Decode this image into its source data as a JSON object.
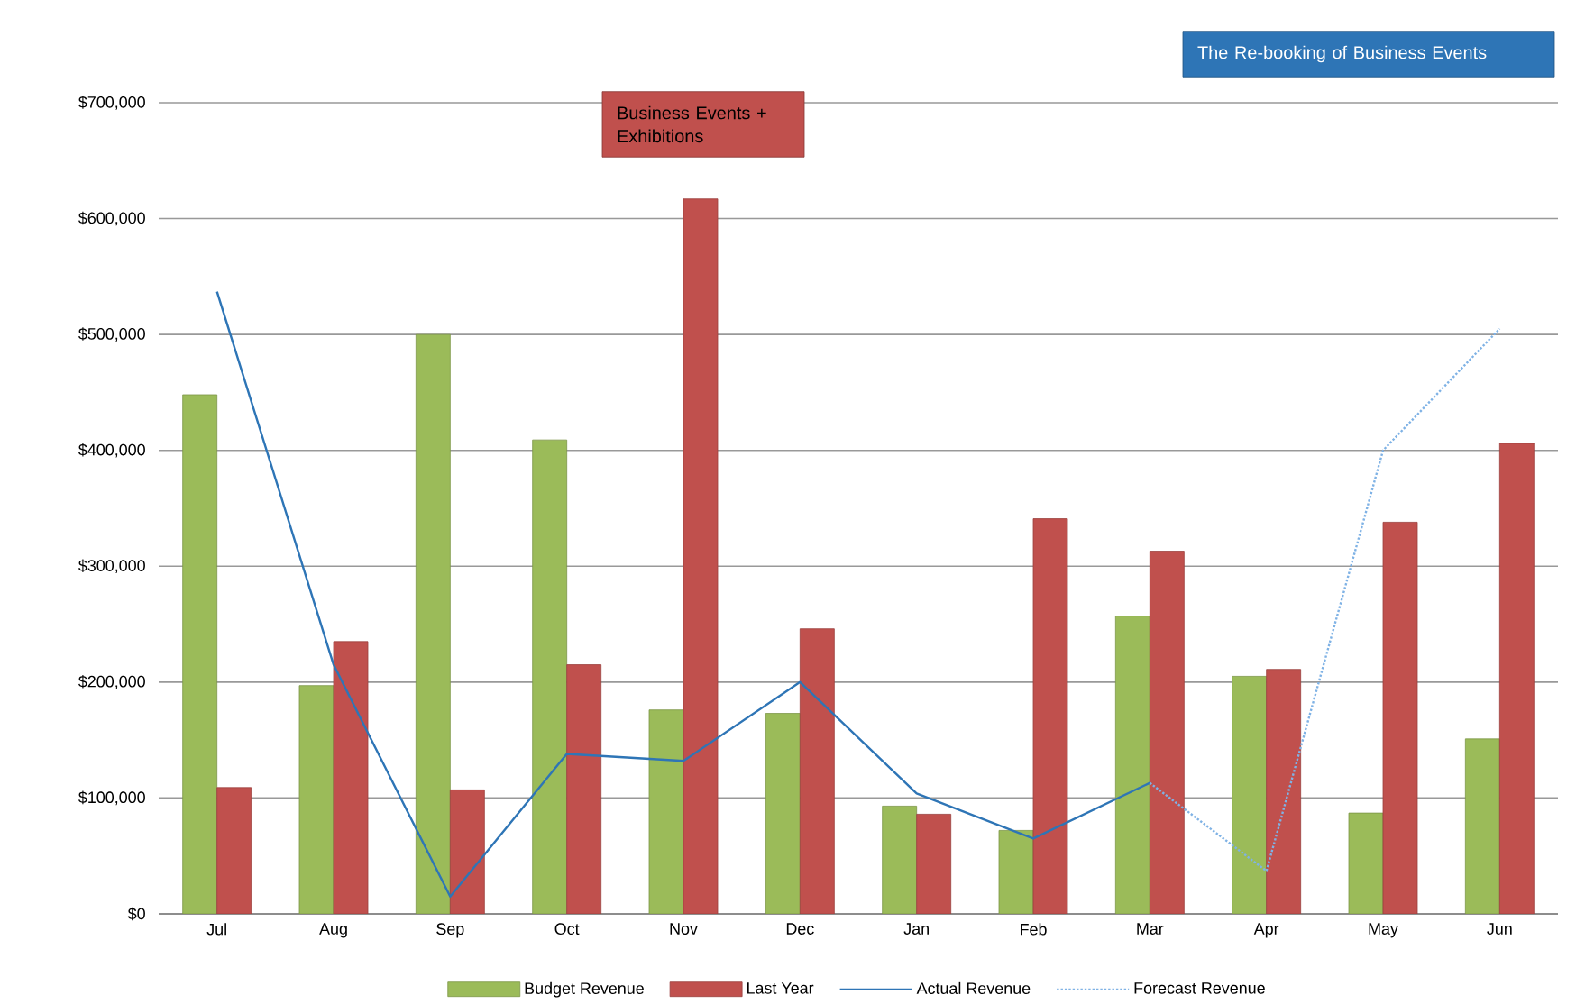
{
  "chart_data": {
    "type": "bar",
    "categories": [
      "Jul",
      "Aug",
      "Sep",
      "Oct",
      "Nov",
      "Dec",
      "Jan",
      "Feb",
      "Mar",
      "Apr",
      "May",
      "Jun"
    ],
    "series": [
      {
        "name": "Budget Revenue",
        "color": "#9bbb59",
        "values": [
          448000,
          197000,
          500000,
          409000,
          176000,
          173000,
          93000,
          72000,
          257000,
          205000,
          87000,
          151000
        ]
      },
      {
        "name": "Last Year",
        "color": "#c0504d",
        "values": [
          109000,
          235000,
          107000,
          215000,
          617000,
          246000,
          86000,
          341000,
          313000,
          211000,
          338000,
          406000
        ]
      },
      {
        "name": "Actual Revenue",
        "type": "line",
        "color": "#2e75b6",
        "line_style": "solid",
        "values": [
          537000,
          215000,
          15000,
          138000,
          132000,
          200000,
          104000,
          65000,
          113000,
          null,
          null,
          null
        ]
      },
      {
        "name": "Forecast Revenue",
        "type": "line",
        "color": "#7fb2e5",
        "line_style": "dotted",
        "values": [
          null,
          null,
          null,
          null,
          null,
          null,
          null,
          null,
          113000,
          37000,
          400000,
          505000
        ]
      }
    ],
    "ylim": [
      0,
      700000
    ],
    "yticks": [
      {
        "value": 0,
        "label": "$0"
      },
      {
        "value": 100000,
        "label": "$100,000"
      },
      {
        "value": 200000,
        "label": "$200,000"
      },
      {
        "value": 300000,
        "label": "$300,000"
      },
      {
        "value": 400000,
        "label": "$400,000"
      },
      {
        "value": 500000,
        "label": "$500,000"
      },
      {
        "value": 600000,
        "label": "$600,000"
      },
      {
        "value": 700000,
        "label": "$700,000"
      }
    ],
    "grid": "y",
    "legend": "bottom",
    "annotations": [
      "Business Events + Exhibitions",
      "The Re-booking of Business Events"
    ]
  }
}
